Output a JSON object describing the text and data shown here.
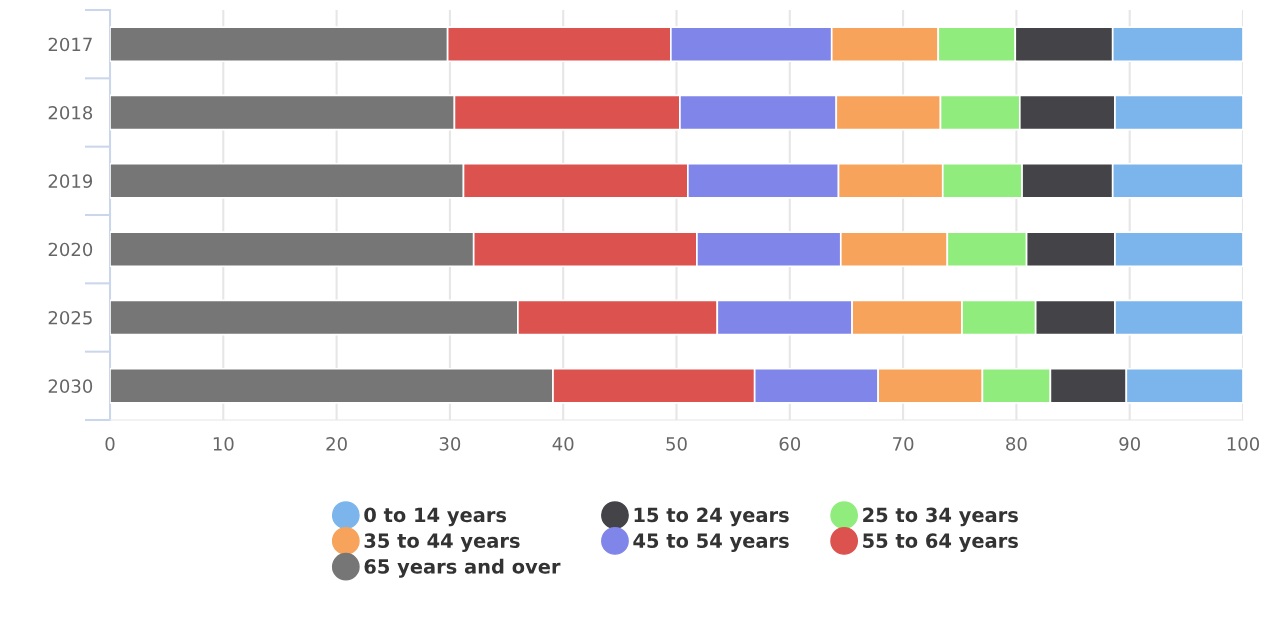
{
  "chart_data": {
    "type": "bar",
    "orientation": "horizontal",
    "stacked": true,
    "categories": [
      "2017",
      "2018",
      "2019",
      "2020",
      "2025",
      "2030"
    ],
    "series": [
      {
        "name": "65 years and over",
        "color": "#767676",
        "values": [
          29.8,
          30.4,
          31.2,
          32.1,
          36.0,
          39.1
        ]
      },
      {
        "name": "55 to 64 years",
        "color": "#db524e",
        "values": [
          19.7,
          19.9,
          19.8,
          19.7,
          17.6,
          17.8
        ]
      },
      {
        "name": "45 to 54 years",
        "color": "#8085e9",
        "values": [
          14.2,
          13.8,
          13.3,
          12.7,
          11.9,
          10.9
        ]
      },
      {
        "name": "35 to 44 years",
        "color": "#f7a35c",
        "values": [
          9.4,
          9.2,
          9.2,
          9.4,
          9.7,
          9.2
        ]
      },
      {
        "name": "25 to 34 years",
        "color": "#90ed7d",
        "values": [
          6.8,
          7.0,
          7.0,
          7.0,
          6.5,
          6.0
        ]
      },
      {
        "name": "15 to 24 years",
        "color": "#434348",
        "values": [
          8.6,
          8.4,
          8.0,
          7.8,
          7.0,
          6.7
        ]
      },
      {
        "name": "0 to 14 years",
        "color": "#7cb5ec",
        "values": [
          11.5,
          11.3,
          11.5,
          11.3,
          11.3,
          10.3
        ]
      }
    ],
    "xlim": [
      0,
      100
    ],
    "xticks": [
      0,
      10,
      20,
      30,
      40,
      50,
      60,
      70,
      80,
      90,
      100
    ],
    "grid": "x",
    "legend": "bottom",
    "marker": "circle"
  }
}
